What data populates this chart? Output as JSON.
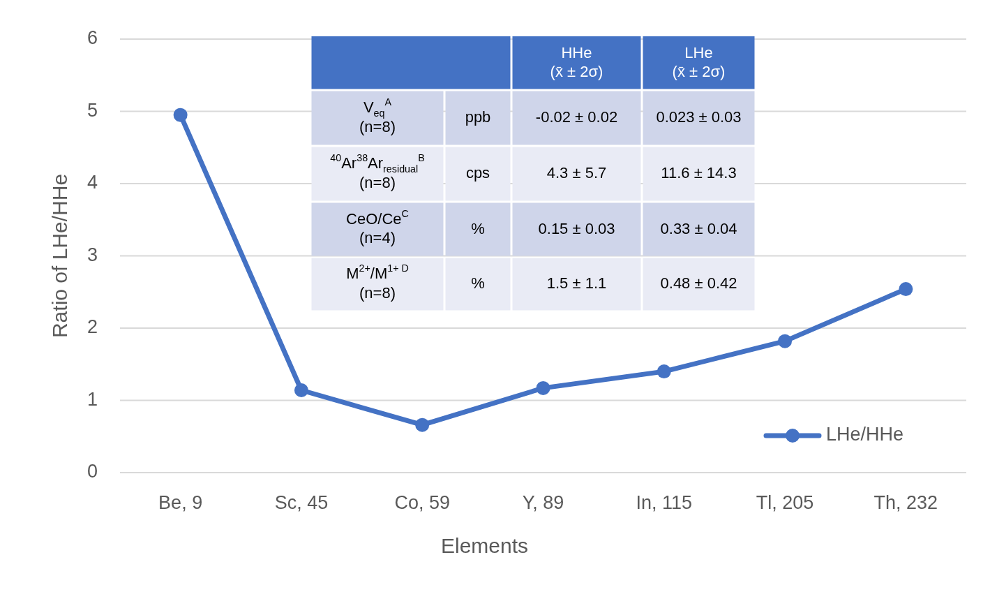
{
  "chart_data": {
    "type": "line",
    "xlabel": "Elements",
    "ylabel": "Ratio of LHe/HHe",
    "categories": [
      "Be, 9",
      "Sc, 45",
      "Co, 59",
      "Y, 89",
      "In, 115",
      "Tl, 205",
      "Th, 232"
    ],
    "series": [
      {
        "name": "LHe/HHe",
        "color": "#4472c4",
        "values": [
          4.95,
          1.14,
          0.66,
          1.17,
          1.4,
          1.82,
          2.54
        ]
      }
    ],
    "ylim": [
      0,
      6
    ],
    "yticks": [
      0,
      1,
      2,
      3,
      4,
      5,
      6
    ],
    "grid": "y",
    "legend": "bottom right",
    "marker": "circle",
    "line_style": "solid",
    "annotations": [
      "HHe\n(x̄ ± 2σ)",
      "LHe\n(x̄ ± 2σ)",
      "V$_{eq}$$^{A}$\n(n=8)",
      "ppb",
      "-0.02 ± 0.02",
      "0.023 ± 0.03",
      "$^{40}$Ar$^{38}$Ar$_{residual}$$^{B}$\n(n=8)",
      "cps",
      "4.3 ± 5.7",
      "11.6 ± 14.3",
      "CeO/Ce$^{C}$\n(n=4)",
      "%",
      "0.15 ± 0.03",
      "0.33 ± 0.04",
      "M$^{2+}$/M$^{1+ D}$\n(n=8)",
      "%",
      "1.5 ± 1.1",
      "0.48 ± 0.42"
    ]
  }
}
